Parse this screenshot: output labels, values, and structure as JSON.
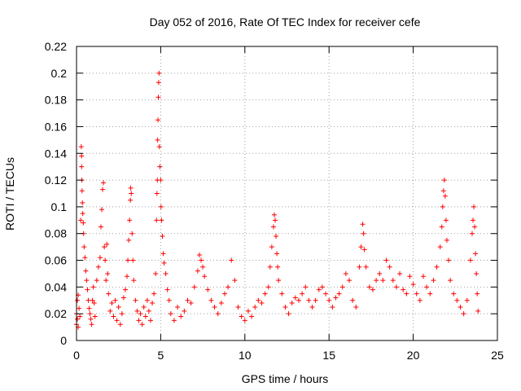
{
  "chart_data": {
    "type": "scatter",
    "title": "Day 052 of 2016, Rate Of TEC Index for receiver cefe",
    "xlabel": "GPS time / hours",
    "ylabel": "ROTI / TECUs",
    "xlim": [
      0,
      25
    ],
    "ylim": [
      0,
      0.22
    ],
    "x_ticks": [
      0,
      5,
      10,
      15,
      20,
      25
    ],
    "y_ticks": [
      0,
      0.02,
      0.04,
      0.06,
      0.08,
      0.1,
      0.12,
      0.14,
      0.16,
      0.18,
      0.2,
      0.22
    ],
    "x_tick_labels": [
      "0",
      "5",
      "10",
      "15",
      "20",
      "25"
    ],
    "y_tick_labels": [
      "0",
      "0.02",
      "0.04",
      "0.06",
      "0.08",
      "0.1",
      "0.12",
      "0.14",
      "0.16",
      "0.18",
      "0.2",
      "0.22"
    ],
    "grid": true,
    "marker": "+",
    "color": "#ff0000",
    "series": [
      {
        "points": [
          [
            0.0,
            0.012
          ],
          [
            0.0,
            0.02
          ],
          [
            0.05,
            0.03
          ],
          [
            0.05,
            0.016
          ],
          [
            0.1,
            0.034
          ],
          [
            0.1,
            0.01
          ],
          [
            0.15,
            0.024
          ],
          [
            0.2,
            0.018
          ],
          [
            0.25,
            0.09
          ],
          [
            0.28,
            0.145
          ],
          [
            0.3,
            0.138
          ],
          [
            0.3,
            0.13
          ],
          [
            0.32,
            0.12
          ],
          [
            0.33,
            0.112
          ],
          [
            0.35,
            0.103
          ],
          [
            0.37,
            0.095
          ],
          [
            0.4,
            0.088
          ],
          [
            0.42,
            0.08
          ],
          [
            0.45,
            0.07
          ],
          [
            0.5,
            0.062
          ],
          [
            0.55,
            0.052
          ],
          [
            0.6,
            0.045
          ],
          [
            0.65,
            0.038
          ],
          [
            0.7,
            0.03
          ],
          [
            0.75,
            0.024
          ],
          [
            0.8,
            0.02
          ],
          [
            0.85,
            0.016
          ],
          [
            0.9,
            0.012
          ],
          [
            0.95,
            0.03
          ],
          [
            1.0,
            0.04
          ],
          [
            1.05,
            0.028
          ],
          [
            1.1,
            0.018
          ],
          [
            1.2,
            0.045
          ],
          [
            1.3,
            0.055
          ],
          [
            1.4,
            0.062
          ],
          [
            1.45,
            0.085
          ],
          [
            1.5,
            0.098
          ],
          [
            1.55,
            0.113
          ],
          [
            1.6,
            0.118
          ],
          [
            1.65,
            0.07
          ],
          [
            1.7,
            0.06
          ],
          [
            1.75,
            0.045
          ],
          [
            1.8,
            0.072
          ],
          [
            1.85,
            0.05
          ],
          [
            1.9,
            0.035
          ],
          [
            2.0,
            0.022
          ],
          [
            2.1,
            0.028
          ],
          [
            2.2,
            0.018
          ],
          [
            2.3,
            0.03
          ],
          [
            2.4,
            0.015
          ],
          [
            2.5,
            0.025
          ],
          [
            2.6,
            0.012
          ],
          [
            2.7,
            0.02
          ],
          [
            2.8,
            0.032
          ],
          [
            2.9,
            0.038
          ],
          [
            3.0,
            0.048
          ],
          [
            3.05,
            0.06
          ],
          [
            3.1,
            0.075
          ],
          [
            3.15,
            0.09
          ],
          [
            3.2,
            0.105
          ],
          [
            3.22,
            0.114
          ],
          [
            3.25,
            0.11
          ],
          [
            3.3,
            0.08
          ],
          [
            3.35,
            0.06
          ],
          [
            3.4,
            0.045
          ],
          [
            3.5,
            0.03
          ],
          [
            3.6,
            0.022
          ],
          [
            3.7,
            0.015
          ],
          [
            3.8,
            0.02
          ],
          [
            3.9,
            0.012
          ],
          [
            4.0,
            0.025
          ],
          [
            4.1,
            0.018
          ],
          [
            4.2,
            0.03
          ],
          [
            4.3,
            0.022
          ],
          [
            4.4,
            0.015
          ],
          [
            4.5,
            0.028
          ],
          [
            4.6,
            0.035
          ],
          [
            4.7,
            0.05
          ],
          [
            4.75,
            0.09
          ],
          [
            4.78,
            0.11
          ],
          [
            4.8,
            0.12
          ],
          [
            4.82,
            0.15
          ],
          [
            4.84,
            0.165
          ],
          [
            4.86,
            0.182
          ],
          [
            4.88,
            0.193
          ],
          [
            4.9,
            0.2
          ],
          [
            4.92,
            0.145
          ],
          [
            4.95,
            0.13
          ],
          [
            5.0,
            0.12
          ],
          [
            5.02,
            0.1
          ],
          [
            5.05,
            0.09
          ],
          [
            5.1,
            0.078
          ],
          [
            5.15,
            0.065
          ],
          [
            5.2,
            0.058
          ],
          [
            5.3,
            0.05
          ],
          [
            5.4,
            0.038
          ],
          [
            5.5,
            0.03
          ],
          [
            5.6,
            0.02
          ],
          [
            5.8,
            0.015
          ],
          [
            6.0,
            0.025
          ],
          [
            6.2,
            0.018
          ],
          [
            6.4,
            0.022
          ],
          [
            6.6,
            0.03
          ],
          [
            6.8,
            0.028
          ],
          [
            7.0,
            0.04
          ],
          [
            7.2,
            0.052
          ],
          [
            7.3,
            0.064
          ],
          [
            7.4,
            0.06
          ],
          [
            7.5,
            0.055
          ],
          [
            7.6,
            0.048
          ],
          [
            7.8,
            0.038
          ],
          [
            8.0,
            0.03
          ],
          [
            8.2,
            0.025
          ],
          [
            8.4,
            0.02
          ],
          [
            8.6,
            0.028
          ],
          [
            8.8,
            0.035
          ],
          [
            9.0,
            0.04
          ],
          [
            9.2,
            0.06
          ],
          [
            9.4,
            0.045
          ],
          [
            9.6,
            0.025
          ],
          [
            9.8,
            0.018
          ],
          [
            10.0,
            0.015
          ],
          [
            10.2,
            0.022
          ],
          [
            10.4,
            0.018
          ],
          [
            10.6,
            0.025
          ],
          [
            10.8,
            0.03
          ],
          [
            11.0,
            0.028
          ],
          [
            11.2,
            0.035
          ],
          [
            11.4,
            0.04
          ],
          [
            11.5,
            0.055
          ],
          [
            11.6,
            0.07
          ],
          [
            11.7,
            0.085
          ],
          [
            11.75,
            0.094
          ],
          [
            11.8,
            0.09
          ],
          [
            11.85,
            0.078
          ],
          [
            11.9,
            0.065
          ],
          [
            11.95,
            0.055
          ],
          [
            12.0,
            0.045
          ],
          [
            12.2,
            0.035
          ],
          [
            12.4,
            0.025
          ],
          [
            12.6,
            0.02
          ],
          [
            12.8,
            0.028
          ],
          [
            13.0,
            0.032
          ],
          [
            13.2,
            0.03
          ],
          [
            13.4,
            0.035
          ],
          [
            13.6,
            0.04
          ],
          [
            13.8,
            0.03
          ],
          [
            14.0,
            0.025
          ],
          [
            14.2,
            0.03
          ],
          [
            14.4,
            0.038
          ],
          [
            14.6,
            0.04
          ],
          [
            14.8,
            0.035
          ],
          [
            15.0,
            0.03
          ],
          [
            15.2,
            0.025
          ],
          [
            15.4,
            0.032
          ],
          [
            15.6,
            0.035
          ],
          [
            15.8,
            0.04
          ],
          [
            16.0,
            0.05
          ],
          [
            16.2,
            0.045
          ],
          [
            16.4,
            0.03
          ],
          [
            16.6,
            0.025
          ],
          [
            16.8,
            0.055
          ],
          [
            16.9,
            0.07
          ],
          [
            17.0,
            0.087
          ],
          [
            17.05,
            0.08
          ],
          [
            17.1,
            0.068
          ],
          [
            17.2,
            0.055
          ],
          [
            17.4,
            0.04
          ],
          [
            17.6,
            0.038
          ],
          [
            17.8,
            0.045
          ],
          [
            18.0,
            0.05
          ],
          [
            18.2,
            0.045
          ],
          [
            18.4,
            0.06
          ],
          [
            18.6,
            0.055
          ],
          [
            18.8,
            0.045
          ],
          [
            19.0,
            0.04
          ],
          [
            19.2,
            0.05
          ],
          [
            19.4,
            0.038
          ],
          [
            19.6,
            0.035
          ],
          [
            19.8,
            0.048
          ],
          [
            20.0,
            0.042
          ],
          [
            20.2,
            0.035
          ],
          [
            20.4,
            0.03
          ],
          [
            20.6,
            0.048
          ],
          [
            20.8,
            0.04
          ],
          [
            21.0,
            0.035
          ],
          [
            21.2,
            0.045
          ],
          [
            21.4,
            0.055
          ],
          [
            21.6,
            0.07
          ],
          [
            21.7,
            0.085
          ],
          [
            21.75,
            0.1
          ],
          [
            21.8,
            0.112
          ],
          [
            21.85,
            0.12
          ],
          [
            21.9,
            0.108
          ],
          [
            21.95,
            0.09
          ],
          [
            22.0,
            0.075
          ],
          [
            22.1,
            0.06
          ],
          [
            22.2,
            0.045
          ],
          [
            22.4,
            0.035
          ],
          [
            22.6,
            0.03
          ],
          [
            22.8,
            0.025
          ],
          [
            23.0,
            0.02
          ],
          [
            23.2,
            0.03
          ],
          [
            23.4,
            0.06
          ],
          [
            23.5,
            0.08
          ],
          [
            23.55,
            0.09
          ],
          [
            23.6,
            0.1
          ],
          [
            23.65,
            0.085
          ],
          [
            23.7,
            0.065
          ],
          [
            23.75,
            0.05
          ],
          [
            23.8,
            0.035
          ],
          [
            23.85,
            0.022
          ]
        ]
      }
    ]
  }
}
